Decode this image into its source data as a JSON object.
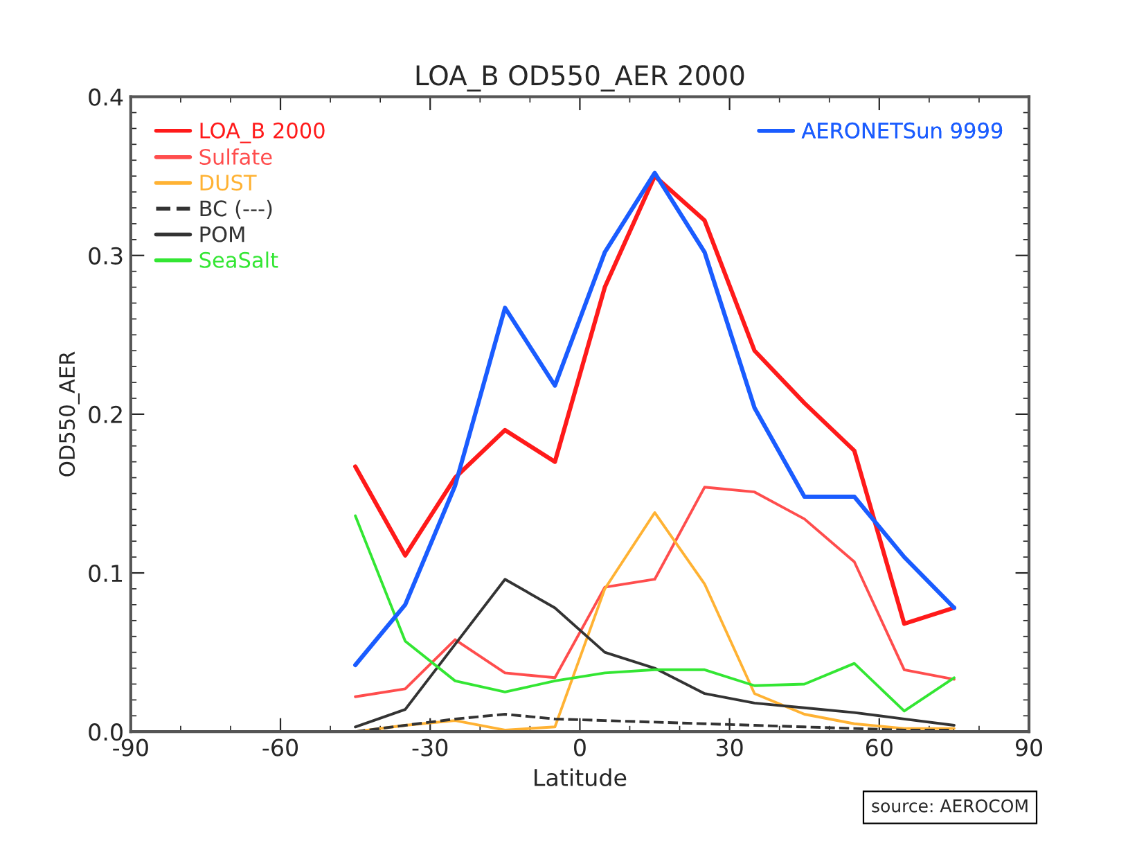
{
  "chart_data": {
    "type": "line",
    "title": "LOA_B OD550_AER 2000",
    "xlabel": "Latitude",
    "ylabel": "OD550_AER",
    "x": [
      -45,
      -35,
      -25,
      -15,
      -5,
      5,
      15,
      25,
      35,
      45,
      55,
      65,
      75
    ],
    "series": [
      {
        "name": "LOA_B 2000",
        "color": "#ff1a1a",
        "values": [
          0.167,
          0.111,
          0.16,
          0.19,
          0.17,
          0.28,
          0.35,
          0.322,
          0.24,
          0.207,
          0.177,
          0.068,
          0.078
        ]
      },
      {
        "name": "Sulfate",
        "color": "#ff4d4d",
        "values": [
          0.022,
          0.027,
          0.058,
          0.037,
          0.034,
          0.091,
          0.096,
          0.154,
          0.151,
          0.134,
          0.107,
          0.039,
          0.033
        ]
      },
      {
        "name": "DUST",
        "color": "#ffb233",
        "values": [
          0.0,
          0.004,
          0.007,
          0.001,
          0.003,
          0.09,
          0.138,
          0.093,
          0.024,
          0.011,
          0.005,
          0.002,
          0.002
        ]
      },
      {
        "name": "BC (---)",
        "color": "#333333",
        "line_style": "dashed",
        "values": [
          0.0,
          0.004,
          0.008,
          0.011,
          0.008,
          0.007,
          0.006,
          0.005,
          0.004,
          0.003,
          0.002,
          0.001,
          0.001
        ]
      },
      {
        "name": "POM",
        "color": "#333333",
        "values": [
          0.003,
          0.014,
          0.055,
          0.096,
          0.078,
          0.05,
          0.04,
          0.024,
          0.018,
          0.015,
          0.012,
          0.008,
          0.004
        ]
      },
      {
        "name": "SeaSalt",
        "color": "#33e633",
        "values": [
          0.136,
          0.057,
          0.032,
          0.025,
          0.032,
          0.037,
          0.039,
          0.039,
          0.029,
          0.03,
          0.043,
          0.013,
          0.034
        ]
      },
      {
        "name": "AERONETSun 9999",
        "color": "#1a5cff",
        "values": [
          0.042,
          0.08,
          0.155,
          0.267,
          0.218,
          0.302,
          0.352,
          0.302,
          0.204,
          0.148,
          0.148,
          0.11,
          0.078
        ]
      }
    ],
    "xlim": [
      -90,
      90
    ],
    "xticks": [
      -90,
      -60,
      -30,
      0,
      30,
      60,
      90
    ],
    "ylim": [
      0,
      0.4
    ],
    "yticks": [
      {
        "value": 0,
        "label": "0.0"
      },
      {
        "value": 0.1,
        "label": "0.1"
      },
      {
        "value": 0.2,
        "label": "0.2"
      },
      {
        "value": 0.3,
        "label": "0.3"
      },
      {
        "value": 0.4,
        "label": "0.4"
      }
    ],
    "grid": false,
    "legend": "top left",
    "annotations": [
      "source: AEROCOM"
    ]
  }
}
